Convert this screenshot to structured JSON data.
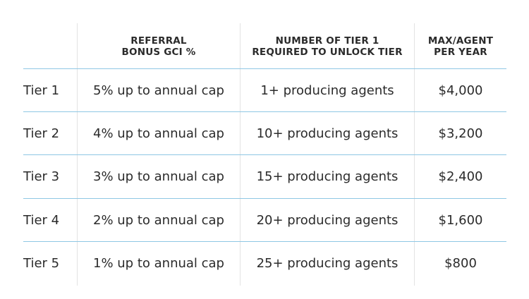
{
  "table": {
    "headers": [
      {
        "line1": "",
        "line2": ""
      },
      {
        "line1": "REFERRAL",
        "line2": "BONUS GCI %"
      },
      {
        "line1": "NUMBER OF TIER 1",
        "line2": "REQUIRED TO UNLOCK TIER"
      },
      {
        "line1": "MAX/AGENT",
        "line2": "PER YEAR"
      }
    ],
    "rows": [
      {
        "tier": "Tier 1",
        "bonus": "5% up to annual cap",
        "required": "1+ producing agents",
        "max": "$4,000"
      },
      {
        "tier": "Tier 2",
        "bonus": "4% up to annual cap",
        "required": "10+ producing agents",
        "max": "$3,200"
      },
      {
        "tier": "Tier 3",
        "bonus": "3% up to annual cap",
        "required": "15+ producing agents",
        "max": "$2,400"
      },
      {
        "tier": "Tier 4",
        "bonus": "2% up to annual cap",
        "required": "20+ producing agents",
        "max": "$1,600"
      },
      {
        "tier": "Tier 5",
        "bonus": "1% up to annual cap",
        "required": "25+ producing agents",
        "max": "$800"
      }
    ]
  },
  "colors": {
    "row_divider": "#8fc7e4",
    "column_divider": "#e3e3e3",
    "text": "#2b2b2b",
    "background": "#ffffff"
  }
}
